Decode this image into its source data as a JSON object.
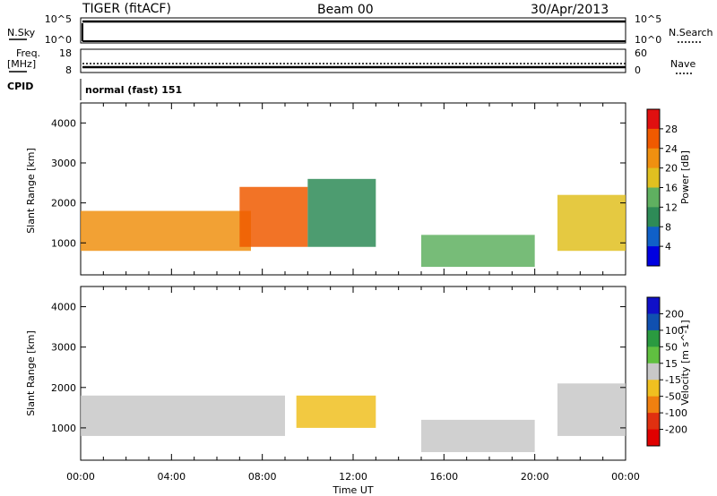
{
  "header": {
    "station": "TIGER (fitACF)",
    "beam": "Beam 00",
    "date": "30/Apr/2013"
  },
  "top_panels": {
    "nsky_label": "N.Sky",
    "nsearch_label": "N.Search",
    "freq_label_1": "Freq.",
    "freq_label_2": "[MHz]",
    "nave_label": "Nave",
    "cpid_label": "CPID",
    "nsky_ticks_left": [
      "10^5",
      "10^0"
    ],
    "nsky_ticks_right": [
      "10^5",
      "10^0"
    ],
    "freq_ticks": [
      "18",
      "8"
    ],
    "nave_ticks": [
      "60",
      "0"
    ],
    "cpid_text": "normal (fast) 151"
  },
  "chart_data": [
    {
      "type": "heatmap",
      "name": "power-panel",
      "ylabel": "Slant Range [km]",
      "xlabel": "",
      "ylim": [
        200,
        4500
      ],
      "yticks": [
        "1000",
        "2000",
        "3000",
        "4000"
      ],
      "colorbar": {
        "label": "Power [dB]",
        "ticks": [
          "4",
          "8",
          "12",
          "16",
          "20",
          "24",
          "28"
        ],
        "colors": [
          "#0000e0",
          "#1060c8",
          "#2e8b57",
          "#5fb060",
          "#e0c020",
          "#f09010",
          "#f05a00",
          "#e01010"
        ]
      },
      "regions": [
        {
          "t0": 0.0,
          "t1": 7.5,
          "r0": 800,
          "r1": 1800,
          "level": 20
        },
        {
          "t0": 7.0,
          "t1": 10.0,
          "r0": 900,
          "r1": 2400,
          "level": 24
        },
        {
          "t0": 10.0,
          "t1": 13.0,
          "r0": 900,
          "r1": 2600,
          "level": 8
        },
        {
          "t0": 15.0,
          "t1": 20.0,
          "r0": 400,
          "r1": 1200,
          "level": 12
        },
        {
          "t0": 21.0,
          "t1": 24.0,
          "r0": 800,
          "r1": 2200,
          "level": 16
        }
      ]
    },
    {
      "type": "heatmap",
      "name": "velocity-panel",
      "ylabel": "Slant Range [km]",
      "xlabel": "Time UT",
      "ylim": [
        200,
        4500
      ],
      "yticks": [
        "1000",
        "2000",
        "3000",
        "4000"
      ],
      "xticks": [
        "00:00",
        "04:00",
        "08:00",
        "12:00",
        "16:00",
        "20:00",
        "00:00"
      ],
      "colorbar": {
        "label": "Velocity [m s^-1]",
        "ticks": [
          "200",
          "100",
          "50",
          "15",
          "-15",
          "-50",
          "-100",
          "-200"
        ],
        "colors": [
          "#1010c8",
          "#1050b0",
          "#2a9a40",
          "#60c040",
          "#c8c8c8",
          "#f0c020",
          "#f08010",
          "#e03010",
          "#e00000"
        ]
      },
      "regions": [
        {
          "t0": 0.0,
          "t1": 9.0,
          "r0": 800,
          "r1": 1800,
          "level": 0
        },
        {
          "t0": 9.5,
          "t1": 13.0,
          "r0": 1000,
          "r1": 1800,
          "level": -50
        },
        {
          "t0": 15.0,
          "t1": 20.0,
          "r0": 400,
          "r1": 1200,
          "level": 0
        },
        {
          "t0": 21.0,
          "t1": 24.0,
          "r0": 800,
          "r1": 2100,
          "level": 0
        }
      ]
    }
  ]
}
